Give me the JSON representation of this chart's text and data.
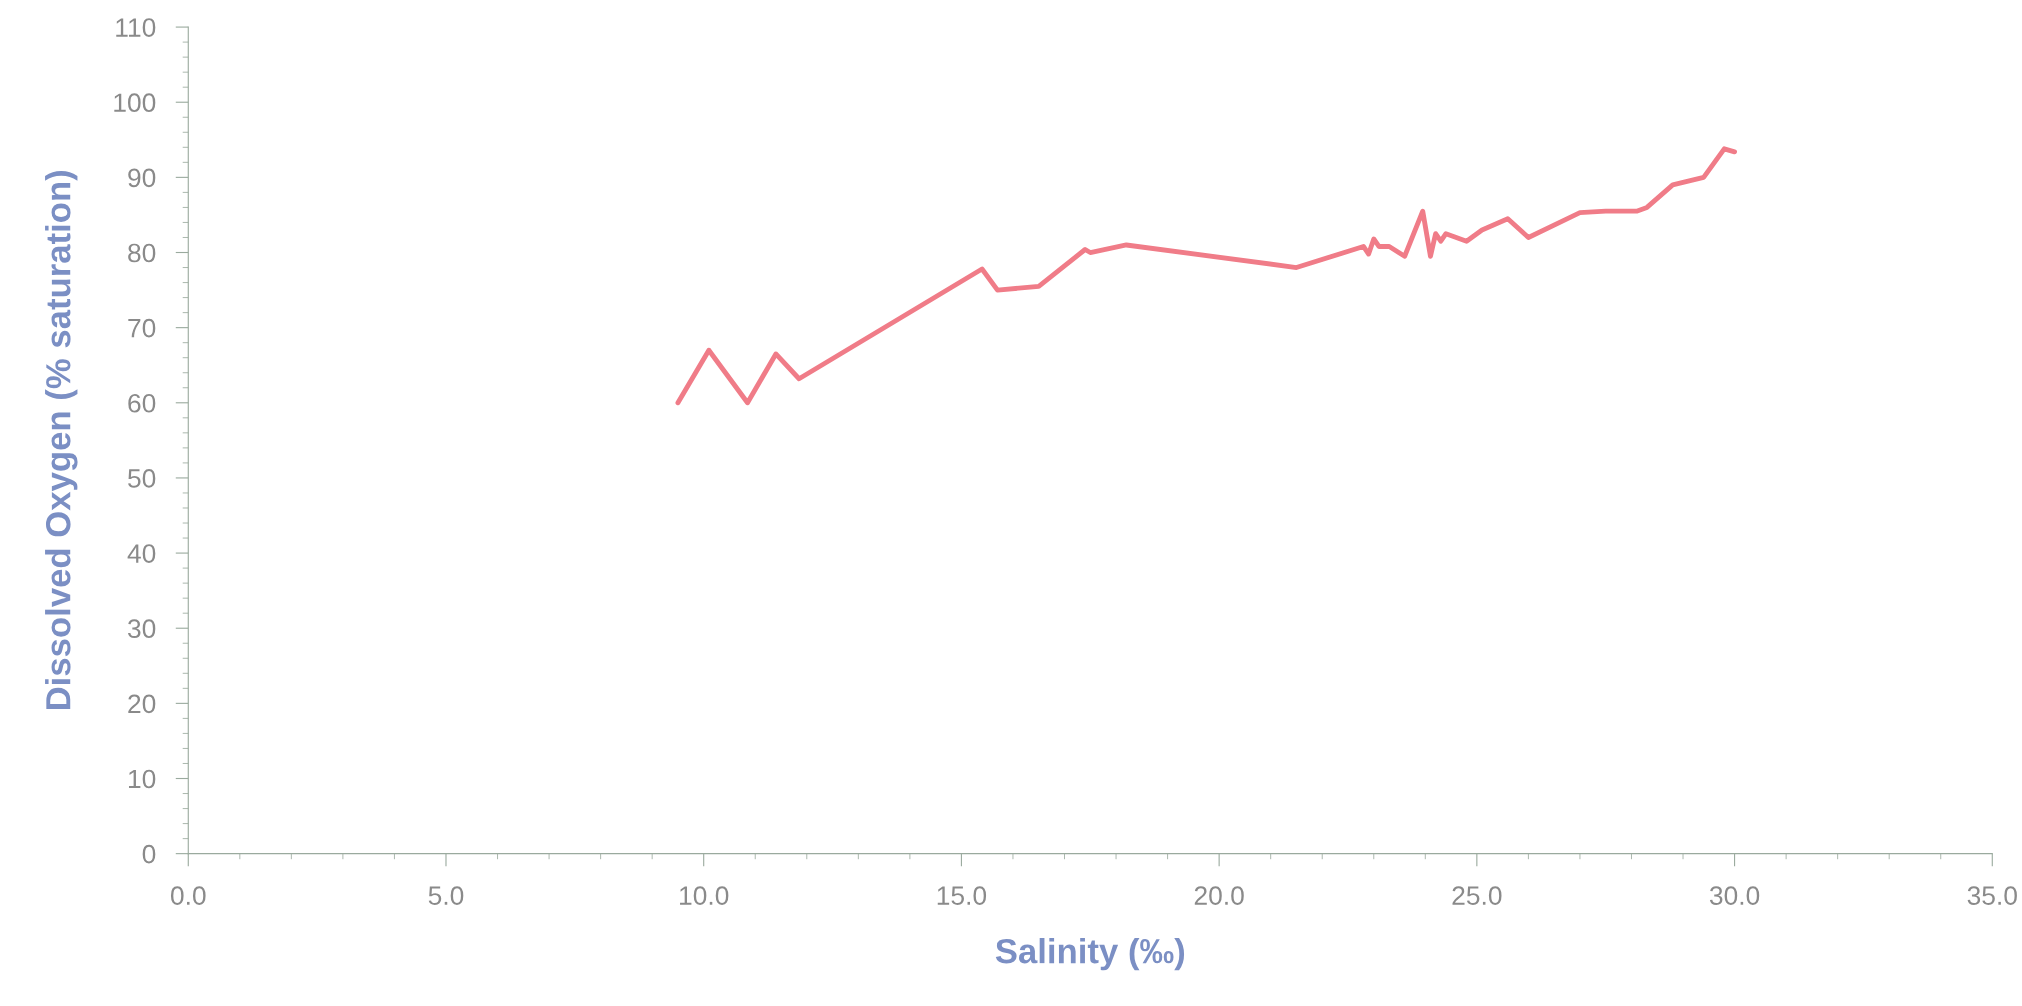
{
  "chart_data": {
    "type": "line",
    "xlabel": "Salinity (‰)",
    "ylabel": "Dissolved Oxygen (% saturation)",
    "x": [
      9.5,
      10.1,
      10.85,
      11.4,
      11.85,
      15.4,
      15.7,
      16.5,
      17.4,
      17.5,
      18.2,
      21.5,
      22.8,
      22.9,
      23.0,
      23.1,
      23.3,
      23.6,
      23.95,
      24.1,
      24.2,
      24.3,
      24.4,
      24.8,
      25.0,
      25.1,
      25.6,
      26.0,
      27.0,
      27.5,
      28.1,
      28.3,
      28.8,
      29.4,
      29.8,
      30.0
    ],
    "series": [
      {
        "color": "#f07c88",
        "values": [
          60,
          67,
          60,
          66.5,
          63.2,
          77.8,
          75,
          75.5,
          80.4,
          80,
          81,
          78,
          80.8,
          79.8,
          81.8,
          80.8,
          80.8,
          79.5,
          85.5,
          79.5,
          82.5,
          81.5,
          82.5,
          81.5,
          82.5,
          83,
          84.5,
          82,
          85.3,
          85.5,
          85.5,
          86,
          89,
          90,
          93.8,
          93.4
        ]
      }
    ],
    "xlim": [
      0,
      35
    ],
    "xticks": [
      {
        "value": 0,
        "label": "0.0"
      },
      {
        "value": 5,
        "label": "5.0"
      },
      {
        "value": 10,
        "label": "10.0"
      },
      {
        "value": 15,
        "label": "15.0"
      },
      {
        "value": 20,
        "label": "20.0"
      },
      {
        "value": 25,
        "label": "25.0"
      },
      {
        "value": 30,
        "label": "30.0"
      },
      {
        "value": 35,
        "label": "35.0"
      }
    ],
    "ylim": [
      0,
      110
    ],
    "yticks": [
      0,
      10,
      20,
      30,
      40,
      50,
      60,
      70,
      80,
      90,
      100,
      110
    ],
    "grid": false,
    "marker": "none",
    "line_style": "solid"
  }
}
